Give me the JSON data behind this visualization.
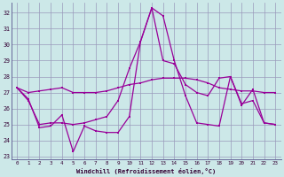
{
  "xlabel": "Windchill (Refroidissement éolien,°C)",
  "background_color": "#cce8e8",
  "grid_color": "#9999bb",
  "line_color": "#990099",
  "xlim": [
    -0.5,
    23.5
  ],
  "ylim": [
    22.8,
    32.6
  ],
  "yticks": [
    23,
    24,
    25,
    26,
    27,
    28,
    29,
    30,
    31,
    32
  ],
  "xticks": [
    0,
    1,
    2,
    3,
    4,
    5,
    6,
    7,
    8,
    9,
    10,
    11,
    12,
    13,
    14,
    15,
    16,
    17,
    18,
    19,
    20,
    21,
    22,
    23
  ],
  "series": [
    {
      "x": [
        0,
        1,
        2,
        3,
        4,
        5,
        6,
        7,
        8,
        9,
        10,
        11,
        12,
        13,
        14,
        15,
        16,
        17,
        18,
        19,
        20,
        21,
        22,
        23
      ],
      "y": [
        27.3,
        26.6,
        24.8,
        24.9,
        25.6,
        23.3,
        24.9,
        24.6,
        24.5,
        24.5,
        25.5,
        30.2,
        32.3,
        31.8,
        29.0,
        26.8,
        25.1,
        25.0,
        24.9,
        28.0,
        26.2,
        27.2,
        25.1,
        25.0
      ]
    },
    {
      "x": [
        0,
        1,
        2,
        3,
        4,
        5,
        6,
        7,
        8,
        9,
        10,
        11,
        12,
        13,
        14,
        15,
        16,
        17,
        18,
        19,
        20,
        21,
        22,
        23
      ],
      "y": [
        27.3,
        26.5,
        25.0,
        25.1,
        25.1,
        25.0,
        25.1,
        25.3,
        25.5,
        26.5,
        28.5,
        30.2,
        32.3,
        29.0,
        28.8,
        27.5,
        27.0,
        26.8,
        27.9,
        28.0,
        26.3,
        26.5,
        25.1,
        25.0
      ]
    },
    {
      "x": [
        0,
        1,
        2,
        3,
        4,
        5,
        6,
        7,
        8,
        9,
        10,
        11,
        12,
        13,
        14,
        15,
        16,
        17,
        18,
        19,
        20,
        21,
        22,
        23
      ],
      "y": [
        27.3,
        27.0,
        27.1,
        27.2,
        27.3,
        27.0,
        27.0,
        27.0,
        27.1,
        27.3,
        27.5,
        27.6,
        27.8,
        27.9,
        27.9,
        27.9,
        27.8,
        27.6,
        27.3,
        27.2,
        27.1,
        27.1,
        27.0,
        27.0
      ]
    }
  ]
}
